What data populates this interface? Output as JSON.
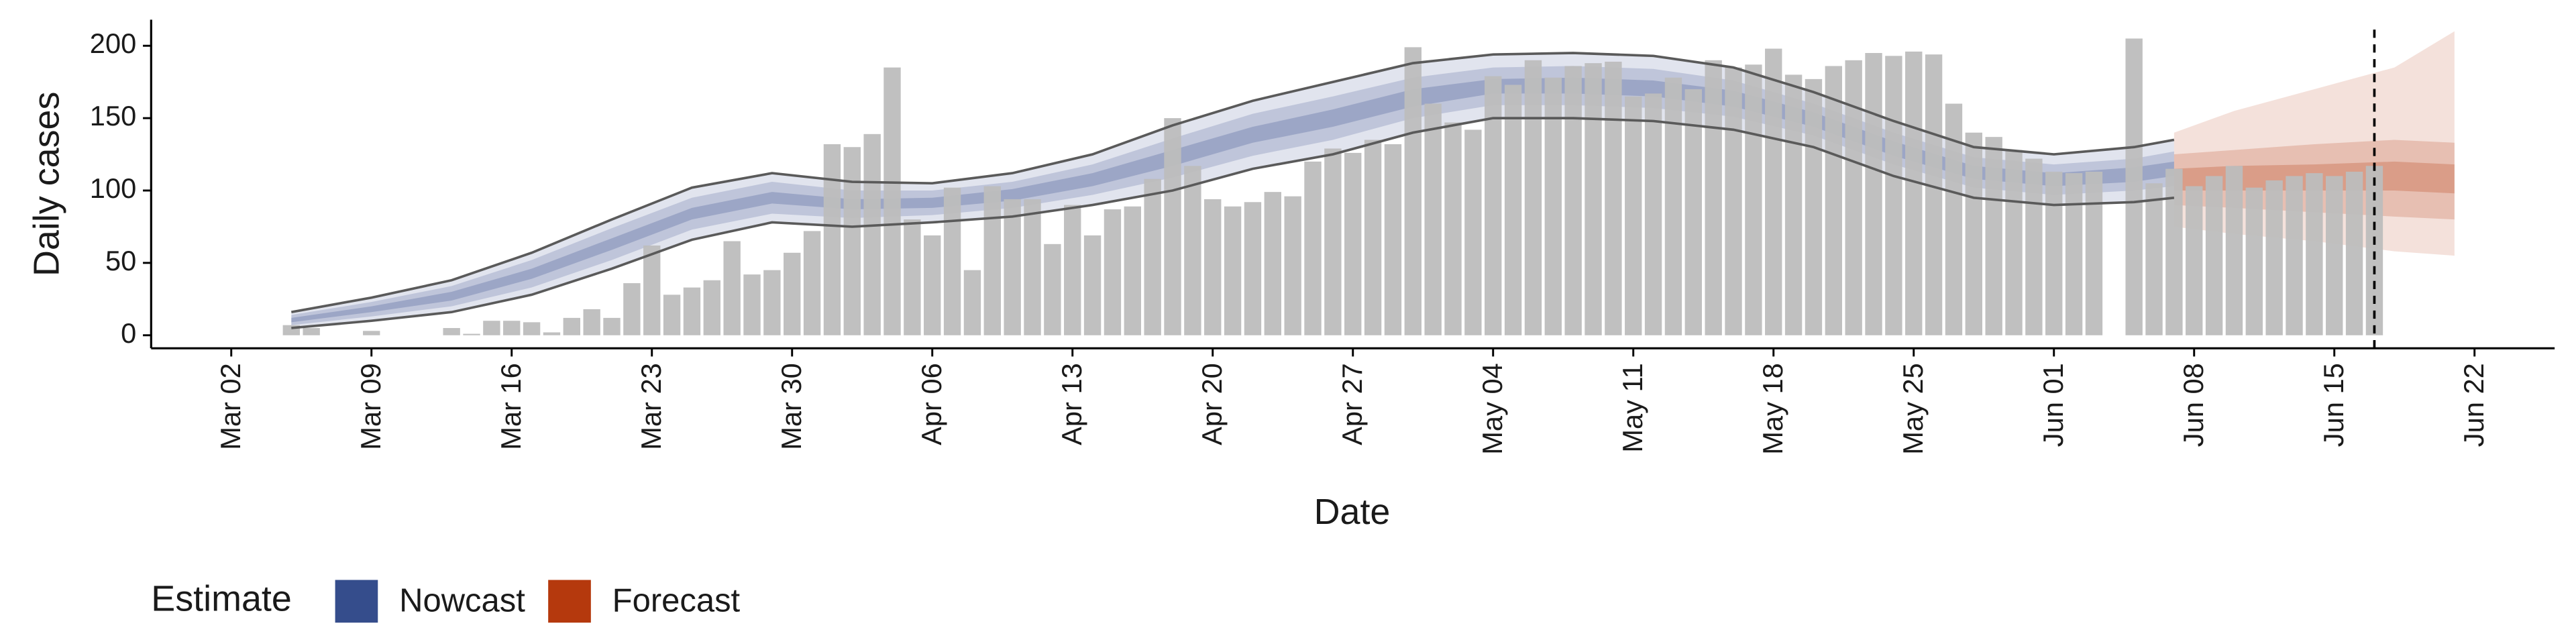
{
  "chart_data": {
    "type": "nowcast",
    "ylabel": "Daily cases",
    "xlabel": "Date",
    "legend_title": "Estimate",
    "ylim": [
      -9,
      218
    ],
    "yticks": [
      0,
      50,
      100,
      150,
      200
    ],
    "xlim": [
      "Feb 27",
      "Jun 26"
    ],
    "xticks": [
      "Mar 02",
      "Mar 09",
      "Mar 16",
      "Mar 23",
      "Mar 30",
      "Apr 06",
      "Apr 13",
      "Apr 20",
      "Apr 27",
      "May 04",
      "May 11",
      "May 18",
      "May 25",
      "Jun 01",
      "Jun 08",
      "Jun 15",
      "Jun 22"
    ],
    "vline": "Jun 17",
    "bars": {
      "color": "#bdbdbd",
      "x": [
        "Mar 05",
        "Mar 06",
        "Mar 07",
        "Mar 08",
        "Mar 09",
        "Mar 10",
        "Mar 11",
        "Mar 12",
        "Mar 13",
        "Mar 14",
        "Mar 15",
        "Mar 16",
        "Mar 17",
        "Mar 18",
        "Mar 19",
        "Mar 20",
        "Mar 21",
        "Mar 22",
        "Mar 23",
        "Mar 24",
        "Mar 25",
        "Mar 26",
        "Mar 27",
        "Mar 28",
        "Mar 29",
        "Mar 30",
        "Mar 31",
        "Apr 01",
        "Apr 02",
        "Apr 03",
        "Apr 04",
        "Apr 05",
        "Apr 06",
        "Apr 07",
        "Apr 08",
        "Apr 09",
        "Apr 10",
        "Apr 11",
        "Apr 12",
        "Apr 13",
        "Apr 14",
        "Apr 15",
        "Apr 16",
        "Apr 17",
        "Apr 18",
        "Apr 19",
        "Apr 20",
        "Apr 21",
        "Apr 22",
        "Apr 23",
        "Apr 24",
        "Apr 25",
        "Apr 26",
        "Apr 27",
        "Apr 28",
        "Apr 29",
        "Apr 30",
        "May 01",
        "May 02",
        "May 03",
        "May 04",
        "May 05",
        "May 06",
        "May 07",
        "May 08",
        "May 09",
        "May 10",
        "May 11",
        "May 12",
        "May 13",
        "May 14",
        "May 15",
        "May 16",
        "May 17",
        "May 18",
        "May 19",
        "May 20",
        "May 21",
        "May 22",
        "May 23",
        "May 24",
        "May 25",
        "May 26",
        "May 27",
        "May 28",
        "May 29",
        "May 30",
        "May 31",
        "Jun 01",
        "Jun 02",
        "Jun 03",
        "Jun 04",
        "Jun 05",
        "Jun 06",
        "Jun 07",
        "Jun 08",
        "Jun 09",
        "Jun 10",
        "Jun 11",
        "Jun 12",
        "Jun 13",
        "Jun 14",
        "Jun 15",
        "Jun 16",
        "Jun 17"
      ],
      "values": [
        7,
        5,
        0,
        0,
        3,
        0,
        0,
        0,
        5,
        1,
        10,
        10,
        9,
        2,
        12,
        18,
        12,
        36,
        62,
        28,
        33,
        38,
        65,
        42,
        45,
        57,
        72,
        132,
        130,
        139,
        185,
        80,
        69,
        102,
        45,
        103,
        94,
        94,
        63,
        90,
        69,
        87,
        89,
        108,
        150,
        117,
        94,
        89,
        92,
        99,
        96,
        120,
        129,
        126,
        135,
        132,
        199,
        160,
        147,
        142,
        179,
        173,
        190,
        178,
        186,
        188,
        189,
        165,
        167,
        178,
        170,
        190,
        185,
        187,
        198,
        180,
        177,
        186,
        190,
        195,
        193,
        196,
        194,
        160,
        140,
        137,
        128,
        122,
        113,
        112,
        113,
        null,
        205,
        105,
        115,
        103,
        110,
        117,
        102,
        107,
        110,
        112,
        110,
        113,
        117
      ]
    },
    "estimates": [
      {
        "name": "Nowcast",
        "color": "#354d8c",
        "lines": true,
        "x": [
          "Mar 05",
          "Mar 09",
          "Mar 13",
          "Mar 17",
          "Mar 21",
          "Mar 25",
          "Mar 29",
          "Apr 02",
          "Apr 06",
          "Apr 10",
          "Apr 14",
          "Apr 18",
          "Apr 22",
          "Apr 26",
          "Apr 30",
          "May 04",
          "May 08",
          "May 12",
          "May 16",
          "May 20",
          "May 24",
          "May 28",
          "Jun 01",
          "Jun 05",
          "Jun 07"
        ],
        "lower_90": [
          5,
          10,
          16,
          28,
          46,
          66,
          78,
          75,
          78,
          82,
          90,
          100,
          115,
          125,
          140,
          150,
          150,
          148,
          142,
          130,
          110,
          95,
          90,
          92,
          95
        ],
        "upper_90": [
          16,
          26,
          38,
          57,
          80,
          102,
          112,
          106,
          105,
          112,
          125,
          145,
          162,
          175,
          188,
          194,
          195,
          193,
          185,
          168,
          148,
          130,
          125,
          130,
          135
        ],
        "lower_50": [
          7,
          13,
          20,
          33,
          52,
          73,
          84,
          81,
          83,
          88,
          97,
          109,
          124,
          135,
          150,
          159,
          159,
          157,
          151,
          138,
          118,
          102,
          97,
          100,
          103
        ],
        "upper_50": [
          14,
          23,
          34,
          52,
          74,
          95,
          106,
          100,
          100,
          106,
          118,
          136,
          153,
          165,
          178,
          185,
          186,
          184,
          176,
          160,
          140,
          123,
          118,
          122,
          127
        ],
        "lower_20": [
          9,
          16,
          24,
          39,
          59,
          80,
          91,
          87,
          88,
          93,
          103,
          117,
          133,
          144,
          158,
          167,
          167,
          165,
          158,
          144,
          124,
          108,
          103,
          106,
          110
        ],
        "upper_20": [
          12,
          20,
          30,
          46,
          67,
          88,
          99,
          94,
          95,
          101,
          112,
          128,
          144,
          156,
          170,
          177,
          178,
          176,
          169,
          154,
          134,
          117,
          112,
          116,
          120
        ]
      },
      {
        "name": "Forecast",
        "color": "#b5390d",
        "lines": false,
        "x": [
          "Jun 07",
          "Jun 10",
          "Jun 14",
          "Jun 18",
          "Jun 21"
        ],
        "lower_90": [
          75,
          70,
          65,
          58,
          55
        ],
        "upper_90": [
          140,
          155,
          170,
          185,
          210
        ],
        "lower_50": [
          90,
          88,
          85,
          82,
          80
        ],
        "upper_50": [
          125,
          128,
          132,
          135,
          133
        ],
        "lower_20": [
          100,
          100,
          100,
          100,
          98
        ],
        "upper_20": [
          115,
          117,
          118,
          120,
          118
        ]
      }
    ]
  }
}
